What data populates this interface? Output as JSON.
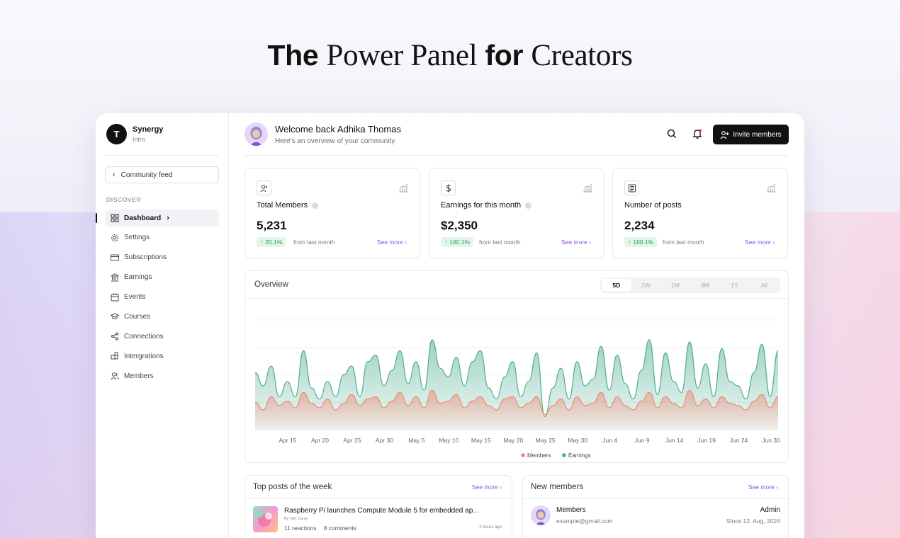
{
  "hero": {
    "part1": "The",
    "part2": "Power Panel",
    "part3": "for",
    "part4": "Creators"
  },
  "brand": {
    "name": "Synergy",
    "sub": "Intro",
    "logo_letter": "T"
  },
  "sidebar": {
    "back_label": "Community feed",
    "section": "DISCOVER",
    "items": [
      {
        "label": "Dashboard",
        "icon": "grid-icon",
        "active": true
      },
      {
        "label": "Settings",
        "icon": "gear-icon"
      },
      {
        "label": "Subscriptions",
        "icon": "card-icon"
      },
      {
        "label": "Earnings",
        "icon": "bank-icon"
      },
      {
        "label": "Events",
        "icon": "calendar-icon"
      },
      {
        "label": "Courses",
        "icon": "graduation-cap-icon"
      },
      {
        "label": "Connections",
        "icon": "share-icon"
      },
      {
        "label": "Intergrations",
        "icon": "puzzle-icon"
      },
      {
        "label": "Members",
        "icon": "users-icon"
      }
    ]
  },
  "header": {
    "welcome": "Welcome back Adhika Thomas",
    "subtitle": "Here's an overview of your community.",
    "invite_label": "Invite members"
  },
  "stats": [
    {
      "label": "Total Members",
      "value": "5,231",
      "pct": "20.1%",
      "from": "from last month",
      "more": "See more",
      "icon": "user-icon"
    },
    {
      "label": "Earnings for this month",
      "value": "$2,350",
      "pct": "180.1%",
      "from": "from last month",
      "more": "See more",
      "icon": "dollar-icon"
    },
    {
      "label": "Number of posts",
      "value": "2,234",
      "pct": "180.1%",
      "from": "from last month",
      "more": "See more",
      "icon": "newspaper-icon"
    }
  ],
  "overview": {
    "title": "Overview",
    "ranges": [
      "5D",
      "2W",
      "1M",
      "6M",
      "1Y",
      "All"
    ],
    "active_range": "5D"
  },
  "chart_data": {
    "type": "area",
    "title": "Overview",
    "x_ticks": [
      "Apr 15",
      "Apr 20",
      "Apr 25",
      "Apr 30",
      "May 5",
      "May 10",
      "May 15",
      "May 20",
      "May 25",
      "May 30",
      "Jun 4",
      "Jun 9",
      "Jun 14",
      "Jun 19",
      "Jun 24",
      "Jun 30"
    ],
    "ylim": [
      0,
      100
    ],
    "grid": true,
    "legend_position": "bottom-center",
    "series": [
      {
        "name": "Members",
        "color": "#ef8a72",
        "values": [
          25,
          18,
          30,
          22,
          26,
          20,
          34,
          24,
          20,
          28,
          18,
          24,
          32,
          22,
          28,
          30,
          20,
          26,
          34,
          22,
          30,
          20,
          36,
          24,
          26,
          32,
          20,
          26,
          30,
          22,
          18,
          28,
          30,
          20,
          24,
          30,
          14,
          22,
          28,
          18,
          30,
          22,
          24,
          34,
          20,
          30,
          22,
          18,
          26,
          34,
          20,
          30,
          24,
          20,
          36,
          22,
          28,
          20,
          30,
          24,
          22,
          18,
          26,
          32,
          20,
          30
        ]
      },
      {
        "name": "Earnings",
        "color": "#4fae93",
        "values": [
          52,
          40,
          58,
          30,
          44,
          30,
          72,
          38,
          28,
          44,
          30,
          50,
          58,
          30,
          62,
          68,
          40,
          54,
          72,
          42,
          62,
          36,
          82,
          56,
          48,
          66,
          40,
          62,
          72,
          38,
          28,
          48,
          62,
          30,
          44,
          70,
          12,
          38,
          56,
          28,
          62,
          40,
          46,
          76,
          36,
          68,
          42,
          28,
          54,
          82,
          32,
          70,
          44,
          34,
          80,
          38,
          60,
          30,
          74,
          44,
          40,
          28,
          52,
          78,
          30,
          72
        ]
      }
    ]
  },
  "top_posts": {
    "title": "Top posts of the week",
    "more": "See more",
    "items": [
      {
        "title": "Raspberry Pi launches Compute Module 5 for embedded ap...",
        "by": "By Van Carey",
        "reactions": "11 reactions",
        "comments": "8 comments",
        "time": "2 hours ago"
      }
    ]
  },
  "new_members": {
    "title": "New members",
    "more": "See more",
    "items": [
      {
        "name": "Members",
        "email": "example@gmail.com",
        "role": "Admin",
        "since": "Since 12, Aug, 2024"
      }
    ]
  }
}
